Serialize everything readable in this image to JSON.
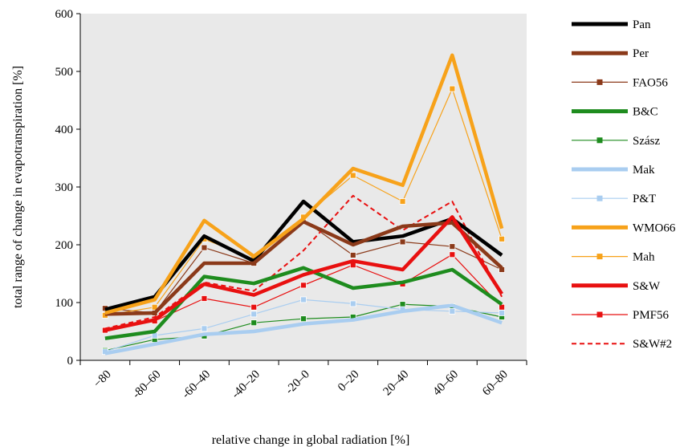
{
  "chart_data": {
    "type": "line",
    "xlabel": "relative change in global radiation [%]",
    "ylabel": "total range of change in evapotranspiration [%]",
    "ylim": [
      0,
      600
    ],
    "yticks": [
      0,
      100,
      200,
      300,
      400,
      500,
      600
    ],
    "categories": [
      "−80",
      "-80–60",
      "-60–40",
      "-40–20",
      "-20–0",
      "0–20",
      "20–40",
      "40–60",
      "60–80"
    ],
    "grid": false,
    "plot_background": "#e9e9e9",
    "legend_position": "right",
    "series": [
      {
        "name": "Pan",
        "color": "#000000",
        "style": "thick",
        "marker": false,
        "values": [
          88,
          110,
          215,
          172,
          275,
          205,
          215,
          245,
          182
        ]
      },
      {
        "name": "Per",
        "color": "#8b3a1a",
        "style": "thick",
        "marker": false,
        "values": [
          80,
          82,
          168,
          168,
          240,
          200,
          232,
          238,
          160
        ]
      },
      {
        "name": "FAO56",
        "color": "#8b3a1a",
        "style": "thin",
        "marker": true,
        "values": [
          90,
          82,
          195,
          168,
          243,
          182,
          205,
          197,
          157
        ]
      },
      {
        "name": "B&C",
        "color": "#1e8c1e",
        "style": "thick",
        "marker": false,
        "values": [
          38,
          50,
          145,
          133,
          160,
          125,
          135,
          157,
          97
        ]
      },
      {
        "name": "Szász",
        "color": "#1e8c1e",
        "style": "thin",
        "marker": true,
        "values": [
          17,
          36,
          42,
          65,
          72,
          75,
          97,
          93,
          75
        ]
      },
      {
        "name": "Mak",
        "color": "#a9cdf0",
        "style": "thick",
        "marker": false,
        "values": [
          12,
          28,
          45,
          50,
          63,
          70,
          85,
          95,
          65
        ]
      },
      {
        "name": "P&T",
        "color": "#a9cdf0",
        "style": "thin",
        "marker": true,
        "values": [
          15,
          43,
          55,
          80,
          105,
          98,
          88,
          85,
          82
        ]
      },
      {
        "name": "WMO66",
        "color": "#f7a21a",
        "style": "thick",
        "marker": false,
        "values": [
          82,
          105,
          242,
          180,
          245,
          332,
          303,
          528,
          228
        ]
      },
      {
        "name": "Mah",
        "color": "#f7a21a",
        "style": "thin",
        "marker": true,
        "values": [
          78,
          92,
          210,
          175,
          248,
          320,
          275,
          470,
          210
        ]
      },
      {
        "name": "S&W",
        "color": "#e81010",
        "style": "thick",
        "marker": false,
        "values": [
          52,
          70,
          132,
          113,
          148,
          172,
          157,
          248,
          115
        ]
      },
      {
        "name": "PMF56",
        "color": "#e81010",
        "style": "thin",
        "marker": true,
        "values": [
          52,
          68,
          107,
          92,
          130,
          165,
          132,
          183,
          92
        ]
      },
      {
        "name": "S&W#2",
        "color": "#e81010",
        "style": "dashed",
        "marker": false,
        "values": [
          55,
          75,
          135,
          120,
          190,
          285,
          225,
          275,
          110
        ]
      }
    ]
  }
}
